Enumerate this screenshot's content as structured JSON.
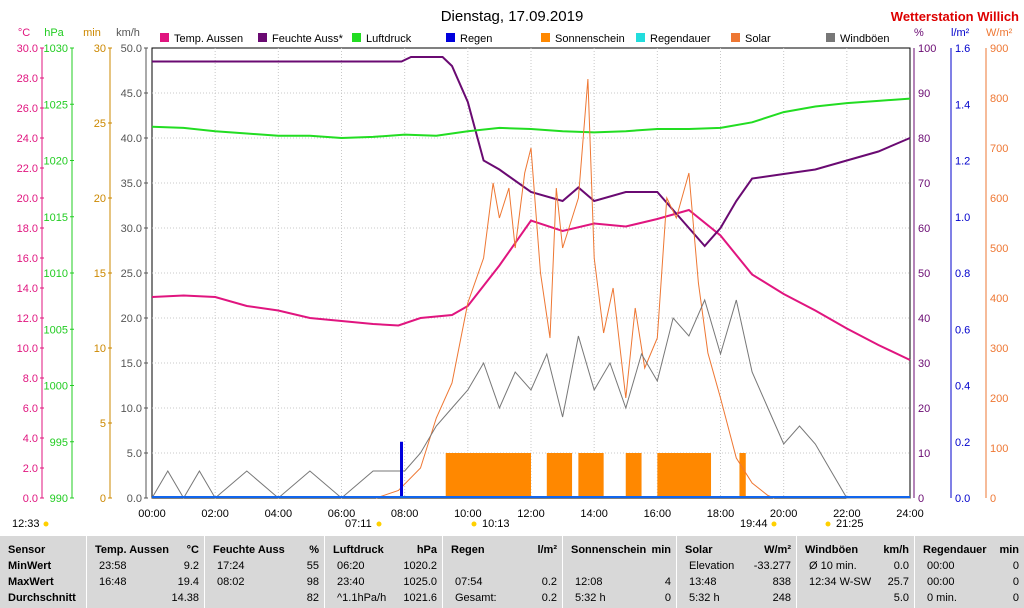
{
  "title": "Dienstag, 17.09.2019",
  "brand": "Wetterstation Willich",
  "chart_data": {
    "type": "line",
    "x_range_hours": [
      0,
      24
    ],
    "x_ticks": [
      "00:00",
      "02:00",
      "04:00",
      "06:00",
      "08:00",
      "10:00",
      "12:00",
      "14:00",
      "16:00",
      "18:00",
      "20:00",
      "22:00",
      "24:00"
    ],
    "legend": [
      {
        "name": "Temp. Aussen",
        "color": "#e0157f"
      },
      {
        "name": "Feuchte Auss*",
        "color": "#6a0a72"
      },
      {
        "name": "Luftdruck",
        "color": "#22dd22"
      },
      {
        "name": "Regen",
        "color": "#0000dd"
      },
      {
        "name": "Sonnenschein",
        "color": "#ff8800"
      },
      {
        "name": "Regendauer",
        "color": "#22dddd"
      },
      {
        "name": "Solar",
        "color": "#ee7733"
      },
      {
        "name": "Windböen",
        "color": "#777777"
      }
    ],
    "axes_left": [
      {
        "unit": "°C",
        "color": "#e0157f",
        "ticks": [
          "0.0",
          "2.0",
          "4.0",
          "6.0",
          "8.0",
          "10.0",
          "12.0",
          "14.0",
          "16.0",
          "18.0",
          "20.0",
          "22.0",
          "24.0",
          "26.0",
          "28.0",
          "30.0"
        ]
      },
      {
        "unit": "hPa",
        "color": "#22cc22",
        "ticks": [
          "990",
          "995",
          "1000",
          "1005",
          "1010",
          "1015",
          "1020",
          "1025",
          "1030"
        ]
      },
      {
        "unit": "min",
        "color": "#cc8800",
        "ticks": [
          "0",
          "5",
          "10",
          "15",
          "20",
          "25",
          "30"
        ]
      },
      {
        "unit": "km/h",
        "color": "#555555",
        "ticks": [
          "0.0",
          "5.0",
          "10.0",
          "15.0",
          "20.0",
          "25.0",
          "30.0",
          "35.0",
          "40.0",
          "45.0",
          "50.0"
        ]
      }
    ],
    "axes_right": [
      {
        "unit": "%",
        "color": "#6a0a72",
        "ticks": [
          "0",
          "10",
          "20",
          "30",
          "40",
          "50",
          "60",
          "70",
          "80",
          "90",
          "100"
        ]
      },
      {
        "unit": "l/m²",
        "color": "#0000cc",
        "ticks": [
          "0.0",
          "0.2",
          "0.4",
          "0.6",
          "0.8",
          "1.0",
          "1.2",
          "1.4",
          "1.6"
        ]
      },
      {
        "unit": "W/m²",
        "color": "#ee7733",
        "ticks": [
          "0",
          "100",
          "200",
          "300",
          "400",
          "500",
          "600",
          "700",
          "800",
          "900"
        ]
      }
    ],
    "series": [
      {
        "name": "Temp. Aussen",
        "unit": "°C",
        "x": [
          0,
          1,
          2,
          3,
          4,
          5,
          6,
          7,
          7.8,
          8.5,
          9.5,
          10,
          11,
          12,
          13,
          14,
          15,
          16,
          17,
          18,
          19,
          20,
          21,
          22,
          23,
          24
        ],
        "y": [
          13.4,
          13.5,
          13.4,
          12.8,
          12.5,
          12.0,
          11.8,
          11.6,
          11.5,
          12.0,
          12.2,
          12.8,
          15.5,
          18.5,
          17.8,
          18.3,
          18.1,
          18.6,
          19.2,
          17.5,
          14.9,
          13.6,
          12.5,
          11.3,
          10.2,
          9.2
        ]
      },
      {
        "name": "Feuchte Auss*",
        "unit": "%",
        "x": [
          0,
          2,
          4,
          6,
          7.9,
          8.2,
          9.2,
          9.5,
          10,
          10.5,
          11,
          12,
          13,
          13.5,
          14,
          15,
          16,
          16.5,
          17.5,
          18,
          18.5,
          19,
          20,
          21,
          22,
          23,
          24
        ],
        "y": [
          97,
          97,
          97,
          97,
          97,
          98,
          98,
          96,
          88,
          75,
          73,
          68,
          66,
          69,
          66,
          68,
          68,
          64,
          56,
          60,
          66,
          71,
          72,
          73,
          75,
          77,
          80
        ]
      },
      {
        "name": "Luftdruck",
        "unit": "hPa",
        "x": [
          0,
          1,
          2,
          3,
          4,
          5,
          6,
          7,
          8,
          9,
          10,
          11,
          12,
          13,
          14,
          15,
          16,
          17,
          18,
          19,
          20,
          21,
          22,
          23,
          24
        ],
        "y": [
          1023.0,
          1022.9,
          1022.6,
          1022.4,
          1022.2,
          1022.2,
          1022.0,
          1022.1,
          1022.3,
          1022.2,
          1022.6,
          1022.9,
          1022.8,
          1022.6,
          1022.5,
          1022.6,
          1022.8,
          1022.8,
          1022.9,
          1023.4,
          1024.3,
          1024.8,
          1025.1,
          1025.3,
          1025.5
        ]
      },
      {
        "name": "Solar",
        "unit": "W/m²",
        "x": [
          7.1,
          7.8,
          8.5,
          9,
          9.5,
          10,
          10.5,
          10.8,
          11,
          11.3,
          11.5,
          11.8,
          12,
          12.3,
          12.6,
          12.8,
          13,
          13.3,
          13.5,
          13.8,
          14,
          14.3,
          14.6,
          15,
          15.3,
          15.6,
          16,
          16.3,
          16.6,
          17,
          17.3,
          17.6,
          18,
          18.5,
          19,
          19.5,
          19.7
        ],
        "y": [
          0,
          15,
          60,
          160,
          230,
          390,
          480,
          630,
          560,
          620,
          500,
          650,
          700,
          450,
          320,
          620,
          500,
          560,
          600,
          838,
          480,
          330,
          420,
          200,
          380,
          260,
          320,
          600,
          560,
          650,
          430,
          290,
          200,
          80,
          30,
          5,
          0
        ]
      },
      {
        "name": "Windböen",
        "unit": "km/h",
        "x": [
          0,
          0.5,
          1,
          1.5,
          2,
          3,
          4,
          5,
          6,
          7,
          8,
          8.5,
          9,
          9.5,
          10,
          10.5,
          11,
          11.5,
          12,
          12.5,
          13,
          13.5,
          14,
          14.5,
          15,
          15.5,
          16,
          16.5,
          17,
          17.5,
          18,
          18.5,
          19,
          19.5,
          20,
          20.5,
          21,
          21.5,
          22,
          23,
          24
        ],
        "y": [
          0,
          3,
          0,
          3,
          0,
          3,
          0,
          3,
          0,
          3,
          3,
          5,
          8,
          10,
          12,
          15,
          10,
          14,
          12,
          16,
          9,
          18,
          12,
          15,
          10,
          16,
          13,
          20,
          18,
          22,
          16,
          22,
          14,
          10,
          6,
          8,
          6,
          3,
          0,
          0,
          0
        ]
      },
      {
        "name": "Regen",
        "unit": "l/m²",
        "x": [
          7.9
        ],
        "y": [
          0.2
        ]
      }
    ],
    "sunshine_blocks": [
      [
        9.3,
        12.0
      ],
      [
        12.5,
        13.3
      ],
      [
        13.5,
        14.3
      ],
      [
        15.0,
        15.5
      ],
      [
        16.0,
        17.7
      ],
      [
        18.6,
        18.8
      ]
    ],
    "markers": [
      {
        "label": "12:33"
      },
      {
        "label": "07:11"
      },
      {
        "label": "10:13"
      },
      {
        "label": "19:44"
      },
      {
        "label": "21:25"
      }
    ]
  },
  "table": {
    "row_labels": [
      "Sensor",
      "MinWert",
      "MaxWert",
      "Durchschnitt"
    ],
    "columns": [
      {
        "name": "Temp. Aussen",
        "unit": "°C",
        "rows": [
          [
            "23:58",
            "9.2"
          ],
          [
            "16:48",
            "19.4"
          ],
          [
            "",
            "14.38"
          ]
        ]
      },
      {
        "name": "Feuchte Auss",
        "unit": "%",
        "rows": [
          [
            "17:24",
            "55"
          ],
          [
            "08:02",
            "98"
          ],
          [
            "",
            "82"
          ]
        ]
      },
      {
        "name": "Luftdruck",
        "unit": "hPa",
        "rows": [
          [
            "06:20",
            "1020.2"
          ],
          [
            "23:40",
            "1025.0"
          ],
          [
            "^1.1hPa/h",
            "1021.6"
          ]
        ]
      },
      {
        "name": "Regen",
        "unit": "l/m²",
        "rows": [
          [
            "",
            ""
          ],
          [
            "07:54",
            "0.2"
          ],
          [
            "Gesamt:",
            "0.2"
          ]
        ]
      },
      {
        "name": "Sonnenschein",
        "unit": "min",
        "rows": [
          [
            "",
            ""
          ],
          [
            "12:08",
            "4"
          ],
          [
            "5:32 h",
            "0"
          ]
        ]
      },
      {
        "name": "Solar",
        "unit": "W/m²",
        "rows": [
          [
            "Elevation",
            "-33.277"
          ],
          [
            "13:48",
            "838"
          ],
          [
            "5:32 h",
            "248"
          ]
        ]
      },
      {
        "name": "Windböen",
        "unit": "km/h",
        "rows": [
          [
            "Ø 10 min.",
            "0.0"
          ],
          [
            "12:34  W-SW",
            "25.7"
          ],
          [
            "",
            "5.0"
          ]
        ]
      },
      {
        "name": "Regendauer",
        "unit": "min",
        "rows": [
          [
            "00:00",
            "0"
          ],
          [
            "00:00",
            "0"
          ],
          [
            "0 min.",
            "0"
          ]
        ]
      }
    ]
  }
}
